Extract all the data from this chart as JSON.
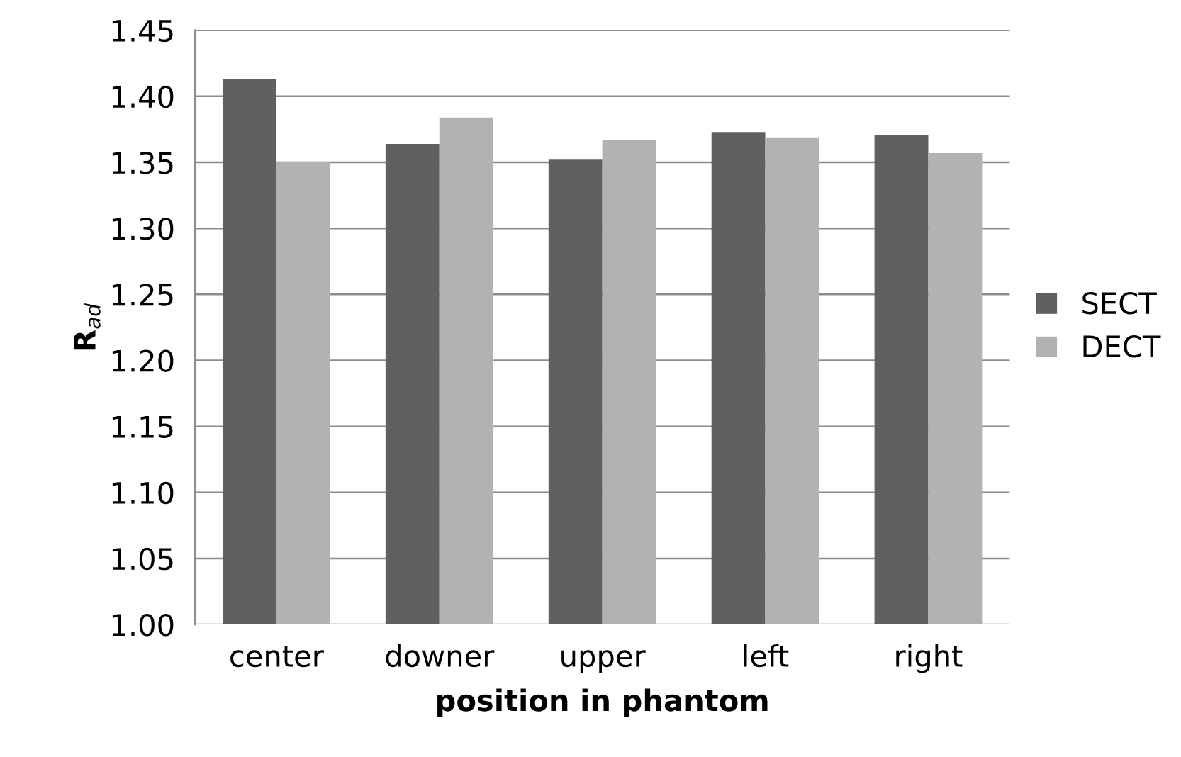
{
  "chart_data": {
    "type": "bar",
    "xlabel": "position in phantom",
    "ylabel": "R$_{ad}$",
    "categories": [
      "center",
      "downer",
      "upper",
      "left",
      "right"
    ],
    "series": [
      {
        "name": "SECT",
        "color": "#606060",
        "values": [
          1.413,
          1.364,
          1.352,
          1.373,
          1.371
        ]
      },
      {
        "name": "DECT",
        "color": "#b2b2b2",
        "values": [
          1.35,
          1.384,
          1.367,
          1.369,
          1.357
        ]
      }
    ],
    "ylim": [
      1.0,
      1.45
    ],
    "yticks": [
      {
        "value": 1.0,
        "label": "1.00"
      },
      {
        "value": 1.05,
        "label": "1.05"
      },
      {
        "value": 1.1,
        "label": "1.10"
      },
      {
        "value": 1.15,
        "label": "1.15"
      },
      {
        "value": 1.2,
        "label": "1.20"
      },
      {
        "value": 1.25,
        "label": "1.25"
      },
      {
        "value": 1.3,
        "label": "1.30"
      },
      {
        "value": 1.35,
        "label": "1.35"
      },
      {
        "value": 1.4,
        "label": "1.40"
      },
      {
        "value": 1.45,
        "label": "1.45"
      }
    ],
    "grid": "y",
    "legend": "right"
  }
}
